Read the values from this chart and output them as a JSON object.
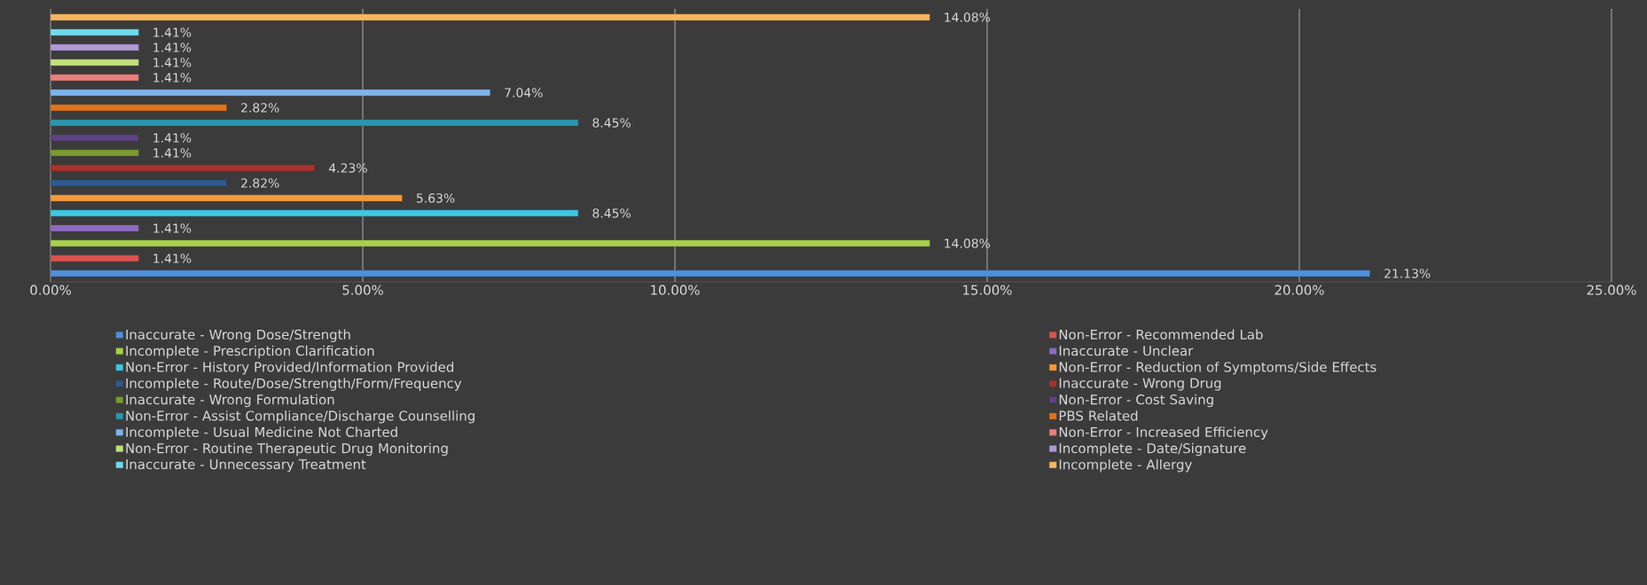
{
  "chart_data": {
    "type": "bar",
    "orientation": "horizontal",
    "categories": [
      null
    ],
    "series": [
      {
        "name": "Inaccurate - Wrong Dose/Strength",
        "color": "#4f8fdc",
        "values": [
          21.13
        ],
        "value_labels": [
          "21.13%"
        ]
      },
      {
        "name": "Non-Error - Recommended Lab",
        "color": "#d9534f",
        "values": [
          1.41
        ],
        "value_labels": [
          "1.41%"
        ]
      },
      {
        "name": "Incomplete - Prescription Clarification",
        "color": "#a8d04a",
        "values": [
          14.08
        ],
        "value_labels": [
          "14.08%"
        ]
      },
      {
        "name": "Inaccurate - Unclear",
        "color": "#8e6bbf",
        "values": [
          1.41
        ],
        "value_labels": [
          "1.41%"
        ]
      },
      {
        "name": "Non-Error - History Provided/Information Provided",
        "color": "#3fc6e0",
        "values": [
          8.45
        ],
        "value_labels": [
          "8.45%"
        ]
      },
      {
        "name": "Non-Error - Reduction of Symptoms/Side Effects",
        "color": "#f59a3c",
        "values": [
          5.63
        ],
        "value_labels": [
          "5.63%"
        ]
      },
      {
        "name": "Incomplete - Route/Dose/Strength/Form/Frequency",
        "color": "#2e5a8e",
        "values": [
          2.82
        ],
        "value_labels": [
          "2.82%"
        ]
      },
      {
        "name": "Inaccurate - Wrong Drug",
        "color": "#a8322f",
        "values": [
          4.23
        ],
        "value_labels": [
          "4.23%"
        ]
      },
      {
        "name": "Inaccurate - Wrong Formulation",
        "color": "#7a9a32",
        "values": [
          1.41
        ],
        "value_labels": [
          "1.41%"
        ]
      },
      {
        "name": "Non-Error - Cost Saving",
        "color": "#5d4383",
        "values": [
          1.41
        ],
        "value_labels": [
          "1.41%"
        ]
      },
      {
        "name": "Non-Error - Assist Compliance/Discharge Counselling",
        "color": "#2b97ad",
        "values": [
          8.45
        ],
        "value_labels": [
          "8.45%"
        ]
      },
      {
        "name": "PBS Related",
        "color": "#e0731e",
        "values": [
          2.82
        ],
        "value_labels": [
          "2.82%"
        ]
      },
      {
        "name": "Incomplete - Usual Medicine Not Charted",
        "color": "#7fb3ec",
        "values": [
          7.04
        ],
        "value_labels": [
          "7.04%"
        ]
      },
      {
        "name": "Non-Error - Increased Efficiency",
        "color": "#e9807e",
        "values": [
          1.41
        ],
        "value_labels": [
          "1.41%"
        ]
      },
      {
        "name": "Non-Error - Routine Therapeutic Drug Monitoring",
        "color": "#c2e17c",
        "values": [
          1.41
        ],
        "value_labels": [
          "1.41%"
        ]
      },
      {
        "name": "Incomplete - Date/Signature",
        "color": "#b09ad6",
        "values": [
          1.41
        ],
        "value_labels": [
          "1.41%"
        ]
      },
      {
        "name": "Inaccurate - Unnecessary Treatment",
        "color": "#6fdaec",
        "values": [
          1.41
        ],
        "value_labels": [
          "1.41%"
        ]
      },
      {
        "name": "Incomplete - Allergy",
        "color": "#f8b660",
        "values": [
          14.08
        ],
        "value_labels": [
          "14.08%"
        ]
      }
    ],
    "xlim": [
      0,
      25
    ],
    "xticks": [
      {
        "value": 0,
        "label": "0.00%"
      },
      {
        "value": 5,
        "label": "5.00%"
      },
      {
        "value": 10,
        "label": "10.00%"
      },
      {
        "value": 15,
        "label": "15.00%"
      },
      {
        "value": 20,
        "label": "20.00%"
      },
      {
        "value": 25,
        "label": "25.00%"
      }
    ],
    "grid": "x",
    "legend": "bottom"
  }
}
